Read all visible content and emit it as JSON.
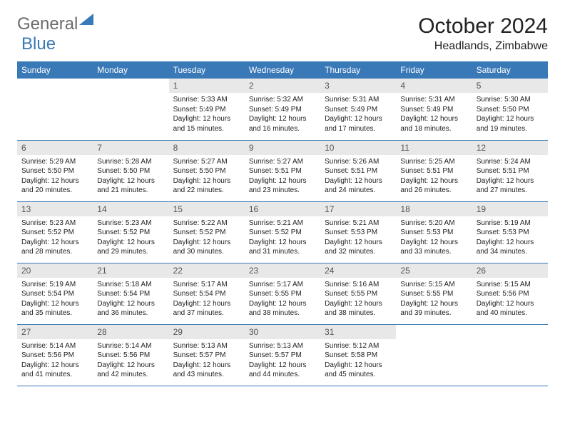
{
  "logo": {
    "text1": "General",
    "text2": "Blue"
  },
  "title": "October 2024",
  "location": "Headlands, Zimbabwe",
  "colors": {
    "brand": "#3a79b7",
    "datebar": "#e8e8e8",
    "text": "#222222",
    "logo_gray": "#6b6b6b"
  },
  "day_headers": [
    "Sunday",
    "Monday",
    "Tuesday",
    "Wednesday",
    "Thursday",
    "Friday",
    "Saturday"
  ],
  "weeks": [
    [
      null,
      null,
      {
        "date": "1",
        "sunrise": "Sunrise: 5:33 AM",
        "sunset": "Sunset: 5:49 PM",
        "daylight": "Daylight: 12 hours and 15 minutes."
      },
      {
        "date": "2",
        "sunrise": "Sunrise: 5:32 AM",
        "sunset": "Sunset: 5:49 PM",
        "daylight": "Daylight: 12 hours and 16 minutes."
      },
      {
        "date": "3",
        "sunrise": "Sunrise: 5:31 AM",
        "sunset": "Sunset: 5:49 PM",
        "daylight": "Daylight: 12 hours and 17 minutes."
      },
      {
        "date": "4",
        "sunrise": "Sunrise: 5:31 AM",
        "sunset": "Sunset: 5:49 PM",
        "daylight": "Daylight: 12 hours and 18 minutes."
      },
      {
        "date": "5",
        "sunrise": "Sunrise: 5:30 AM",
        "sunset": "Sunset: 5:50 PM",
        "daylight": "Daylight: 12 hours and 19 minutes."
      }
    ],
    [
      {
        "date": "6",
        "sunrise": "Sunrise: 5:29 AM",
        "sunset": "Sunset: 5:50 PM",
        "daylight": "Daylight: 12 hours and 20 minutes."
      },
      {
        "date": "7",
        "sunrise": "Sunrise: 5:28 AM",
        "sunset": "Sunset: 5:50 PM",
        "daylight": "Daylight: 12 hours and 21 minutes."
      },
      {
        "date": "8",
        "sunrise": "Sunrise: 5:27 AM",
        "sunset": "Sunset: 5:50 PM",
        "daylight": "Daylight: 12 hours and 22 minutes."
      },
      {
        "date": "9",
        "sunrise": "Sunrise: 5:27 AM",
        "sunset": "Sunset: 5:51 PM",
        "daylight": "Daylight: 12 hours and 23 minutes."
      },
      {
        "date": "10",
        "sunrise": "Sunrise: 5:26 AM",
        "sunset": "Sunset: 5:51 PM",
        "daylight": "Daylight: 12 hours and 24 minutes."
      },
      {
        "date": "11",
        "sunrise": "Sunrise: 5:25 AM",
        "sunset": "Sunset: 5:51 PM",
        "daylight": "Daylight: 12 hours and 26 minutes."
      },
      {
        "date": "12",
        "sunrise": "Sunrise: 5:24 AM",
        "sunset": "Sunset: 5:51 PM",
        "daylight": "Daylight: 12 hours and 27 minutes."
      }
    ],
    [
      {
        "date": "13",
        "sunrise": "Sunrise: 5:23 AM",
        "sunset": "Sunset: 5:52 PM",
        "daylight": "Daylight: 12 hours and 28 minutes."
      },
      {
        "date": "14",
        "sunrise": "Sunrise: 5:23 AM",
        "sunset": "Sunset: 5:52 PM",
        "daylight": "Daylight: 12 hours and 29 minutes."
      },
      {
        "date": "15",
        "sunrise": "Sunrise: 5:22 AM",
        "sunset": "Sunset: 5:52 PM",
        "daylight": "Daylight: 12 hours and 30 minutes."
      },
      {
        "date": "16",
        "sunrise": "Sunrise: 5:21 AM",
        "sunset": "Sunset: 5:52 PM",
        "daylight": "Daylight: 12 hours and 31 minutes."
      },
      {
        "date": "17",
        "sunrise": "Sunrise: 5:21 AM",
        "sunset": "Sunset: 5:53 PM",
        "daylight": "Daylight: 12 hours and 32 minutes."
      },
      {
        "date": "18",
        "sunrise": "Sunrise: 5:20 AM",
        "sunset": "Sunset: 5:53 PM",
        "daylight": "Daylight: 12 hours and 33 minutes."
      },
      {
        "date": "19",
        "sunrise": "Sunrise: 5:19 AM",
        "sunset": "Sunset: 5:53 PM",
        "daylight": "Daylight: 12 hours and 34 minutes."
      }
    ],
    [
      {
        "date": "20",
        "sunrise": "Sunrise: 5:19 AM",
        "sunset": "Sunset: 5:54 PM",
        "daylight": "Daylight: 12 hours and 35 minutes."
      },
      {
        "date": "21",
        "sunrise": "Sunrise: 5:18 AM",
        "sunset": "Sunset: 5:54 PM",
        "daylight": "Daylight: 12 hours and 36 minutes."
      },
      {
        "date": "22",
        "sunrise": "Sunrise: 5:17 AM",
        "sunset": "Sunset: 5:54 PM",
        "daylight": "Daylight: 12 hours and 37 minutes."
      },
      {
        "date": "23",
        "sunrise": "Sunrise: 5:17 AM",
        "sunset": "Sunset: 5:55 PM",
        "daylight": "Daylight: 12 hours and 38 minutes."
      },
      {
        "date": "24",
        "sunrise": "Sunrise: 5:16 AM",
        "sunset": "Sunset: 5:55 PM",
        "daylight": "Daylight: 12 hours and 38 minutes."
      },
      {
        "date": "25",
        "sunrise": "Sunrise: 5:15 AM",
        "sunset": "Sunset: 5:55 PM",
        "daylight": "Daylight: 12 hours and 39 minutes."
      },
      {
        "date": "26",
        "sunrise": "Sunrise: 5:15 AM",
        "sunset": "Sunset: 5:56 PM",
        "daylight": "Daylight: 12 hours and 40 minutes."
      }
    ],
    [
      {
        "date": "27",
        "sunrise": "Sunrise: 5:14 AM",
        "sunset": "Sunset: 5:56 PM",
        "daylight": "Daylight: 12 hours and 41 minutes."
      },
      {
        "date": "28",
        "sunrise": "Sunrise: 5:14 AM",
        "sunset": "Sunset: 5:56 PM",
        "daylight": "Daylight: 12 hours and 42 minutes."
      },
      {
        "date": "29",
        "sunrise": "Sunrise: 5:13 AM",
        "sunset": "Sunset: 5:57 PM",
        "daylight": "Daylight: 12 hours and 43 minutes."
      },
      {
        "date": "30",
        "sunrise": "Sunrise: 5:13 AM",
        "sunset": "Sunset: 5:57 PM",
        "daylight": "Daylight: 12 hours and 44 minutes."
      },
      {
        "date": "31",
        "sunrise": "Sunrise: 5:12 AM",
        "sunset": "Sunset: 5:58 PM",
        "daylight": "Daylight: 12 hours and 45 minutes."
      },
      null,
      null
    ]
  ]
}
